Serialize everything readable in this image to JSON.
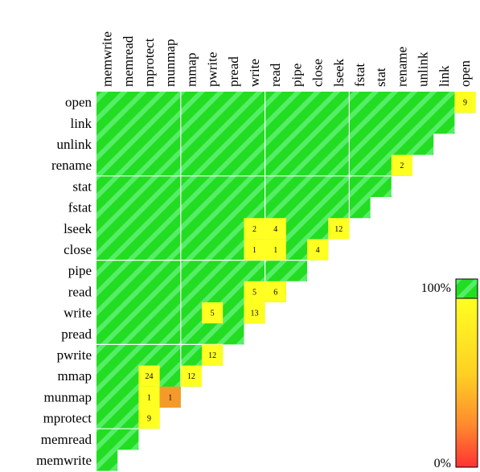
{
  "chart_data": {
    "type": "heatmap",
    "title": "",
    "xlabel": "",
    "ylabel": "",
    "columns": [
      "memwrite",
      "memread",
      "mprotect",
      "munmap",
      "mmap",
      "pwrite",
      "pread",
      "write",
      "read",
      "pipe",
      "close",
      "lseek",
      "fstat",
      "stat",
      "rename",
      "unlink",
      "link",
      "open"
    ],
    "rows": [
      "open",
      "link",
      "unlink",
      "rename",
      "stat",
      "fstat",
      "lseek",
      "close",
      "pipe",
      "read",
      "write",
      "pread",
      "pwrite",
      "mmap",
      "munmap",
      "mprotect",
      "memread",
      "memwrite"
    ],
    "layout": "lower-triangular: row i covers columns 0..(17-i); fully covered (100%) cells are hatched green, other cells show a count",
    "full_coverage_color": "#22dd22",
    "stripe_color": "#44ee66",
    "color_scale": {
      "label_max": "100%",
      "label_min": "0%",
      "colors": [
        "#ffff22",
        "#ffdd22",
        "#ffaa33",
        "#ff7733",
        "#ff3333"
      ]
    },
    "cells": [
      {
        "row": "open",
        "col": "open",
        "value": 9,
        "color": "#ffff22"
      },
      {
        "row": "rename",
        "col": "rename",
        "value": 2,
        "color": "#ffff22"
      },
      {
        "row": "lseek",
        "col": "write",
        "value": 2,
        "color": "#ffff22"
      },
      {
        "row": "lseek",
        "col": "read",
        "value": 4,
        "color": "#ffff22"
      },
      {
        "row": "lseek",
        "col": "lseek",
        "value": 12,
        "color": "#ffff22"
      },
      {
        "row": "close",
        "col": "write",
        "value": 1,
        "color": "#ffff22"
      },
      {
        "row": "close",
        "col": "read",
        "value": 1,
        "color": "#ffff22"
      },
      {
        "row": "close",
        "col": "close",
        "value": 4,
        "color": "#ffff22"
      },
      {
        "row": "read",
        "col": "write",
        "value": 5,
        "color": "#ffff22"
      },
      {
        "row": "read",
        "col": "read",
        "value": 6,
        "color": "#ffff22"
      },
      {
        "row": "write",
        "col": "pwrite",
        "value": 5,
        "color": "#ffff22"
      },
      {
        "row": "write",
        "col": "write",
        "value": 13,
        "color": "#ffff22"
      },
      {
        "row": "pwrite",
        "col": "pwrite",
        "value": 12,
        "color": "#ffff22"
      },
      {
        "row": "mmap",
        "col": "mprotect",
        "value": 24,
        "color": "#ffff22"
      },
      {
        "row": "mmap",
        "col": "mmap",
        "value": 12,
        "color": "#ffff22"
      },
      {
        "row": "munmap",
        "col": "mprotect",
        "value": 1,
        "color": "#ffff22"
      },
      {
        "row": "munmap",
        "col": "munmap",
        "value": 1,
        "color": "#f59a2a"
      },
      {
        "row": "mprotect",
        "col": "mprotect",
        "value": 9,
        "color": "#ffff22"
      }
    ]
  }
}
